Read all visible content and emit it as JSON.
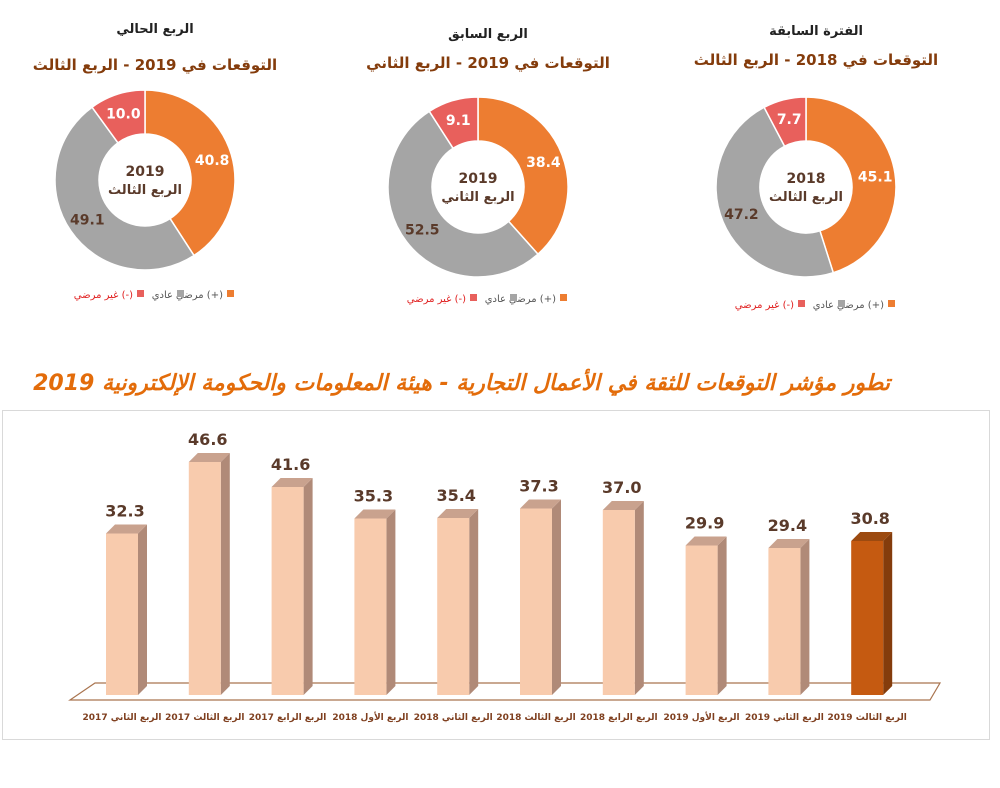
{
  "chart_data": [
    {
      "type": "pie",
      "variant": "donut",
      "title": "الربع الحالي",
      "subtitle": "التوقعات في 2019 - الربع الثالث",
      "center_label": [
        "2019",
        "الربع الثالث"
      ],
      "slices": [
        {
          "name": "مرضي (+)",
          "value": 40.8,
          "color": "#ed7d31"
        },
        {
          "name": "عادي",
          "value": 49.1,
          "color": "#a5a5a5"
        },
        {
          "name": "غير مرضي (-)",
          "value": 10.0,
          "color": "#e8605c"
        }
      ],
      "legend_position": "bottom"
    },
    {
      "type": "pie",
      "variant": "donut",
      "title": "الربع السابق",
      "subtitle": "التوقعات في 2019 - الربع الثاني",
      "center_label": [
        "2019",
        "الربع الثاني"
      ],
      "slices": [
        {
          "name": "مرضي (+)",
          "value": 38.4,
          "color": "#ed7d31"
        },
        {
          "name": "عادي",
          "value": 52.5,
          "color": "#a5a5a5"
        },
        {
          "name": "غير مرضي (-)",
          "value": 9.1,
          "color": "#e8605c"
        }
      ],
      "legend_position": "bottom"
    },
    {
      "type": "pie",
      "variant": "donut",
      "title": "الفترة السابقة",
      "subtitle": "التوقعات في 2018 - الربع الثالث",
      "center_label": [
        "2018",
        "الربع الثالث"
      ],
      "slices": [
        {
          "name": "مرضي (+)",
          "value": 45.1,
          "color": "#ed7d31"
        },
        {
          "name": "عادي",
          "value": 47.2,
          "color": "#a5a5a5"
        },
        {
          "name": "غير مرضي (-)",
          "value": 7.7,
          "color": "#e8605c"
        }
      ],
      "legend_position": "bottom"
    },
    {
      "type": "bar",
      "variant": "3d-column",
      "title": "تطور مؤشر التوقعات للثقة في الأعمال التجارية - هيئة المعلومات والحكومة الإلكترونية 2019",
      "categories": [
        "الربع الثاني 2017",
        "الربع الثالث 2017",
        "الربع الرابع 2017",
        "الربع الأول 2018",
        "الربع الثاني 2018",
        "الربع الثالث 2018",
        "الربع الرابع 2018",
        "الربع الأول 2019",
        "الربع الثاني 2019",
        "الربع الثالث 2019"
      ],
      "values": [
        32.3,
        46.6,
        41.6,
        35.3,
        35.4,
        37.3,
        37.0,
        29.9,
        29.4,
        30.8
      ],
      "colors": {
        "bar": "#f8cbad",
        "highlight": "#c55a11",
        "floor": "#a9744f",
        "label": "#7f3f1f",
        "title": "#e36c0a"
      },
      "grid": false
    }
  ]
}
